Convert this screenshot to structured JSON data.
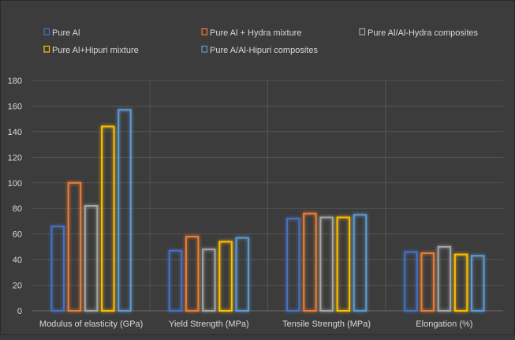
{
  "chart_data": {
    "type": "bar",
    "title": "",
    "xlabel": "",
    "ylabel": "",
    "ylim": [
      0,
      180
    ],
    "yticks": [
      "0",
      "20",
      "40",
      "60",
      "80",
      "100",
      "120",
      "140",
      "160",
      "180"
    ],
    "grid": true,
    "legend_position": "top",
    "categories": [
      "Modulus of elasticity (GPa)",
      "Yield Strength (MPa)",
      "Tensile Strength (MPa)",
      "Elongation (%)"
    ],
    "series": [
      {
        "name": "Pure Al",
        "color": "#4472c4",
        "values": [
          66,
          47,
          72,
          46
        ]
      },
      {
        "name": "Pure Al + Hydra mixture",
        "color": "#ed7d31",
        "values": [
          100,
          58,
          76,
          45
        ]
      },
      {
        "name": "Pure Al/Al-Hydra composites",
        "color": "#a5a5a5",
        "values": [
          82,
          48,
          73,
          50
        ]
      },
      {
        "name": "Pure Al+Hipuri mixture",
        "color": "#ffc000",
        "values": [
          144,
          54,
          73,
          44
        ]
      },
      {
        "name": "Pure A/Al-Hipuri composites",
        "color": "#5b9bd5",
        "values": [
          157,
          57,
          75,
          43
        ]
      }
    ]
  }
}
